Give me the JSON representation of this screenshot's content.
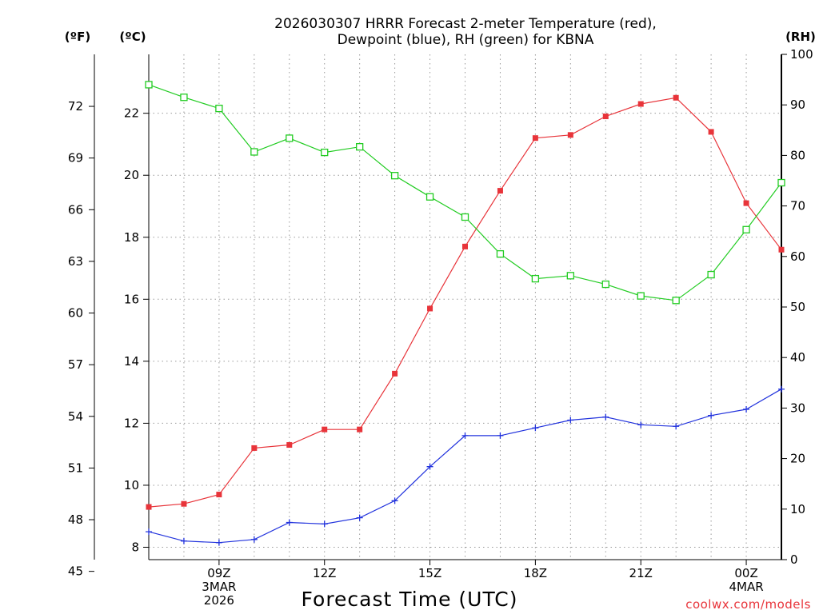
{
  "title_lines": [
    "2026030307 HRRR Forecast 2-meter Temperature (red),",
    "Dewpoint (blue), RH (green) for KBNA"
  ],
  "units": {
    "f": "(ºF)",
    "c": "(ºC)",
    "rh": "(RH)"
  },
  "x_axis_label": "Forecast Time (UTC)",
  "credit": "coolwx.com/models",
  "colors": {
    "temp": "#e8343a",
    "dewp": "#2233dd",
    "rh": "#22cc22",
    "grid": "#9a9a9a"
  },
  "chart_data": {
    "type": "line",
    "title": "2026030307 HRRR Forecast 2-meter Temperature (red), Dewpoint (blue), RH (green) for KBNA",
    "xlabel": "Forecast Time (UTC)",
    "x_hours": [
      7,
      8,
      9,
      10,
      11,
      12,
      13,
      14,
      15,
      16,
      17,
      18,
      19,
      20,
      21,
      22,
      23,
      24,
      25
    ],
    "xlim": [
      7,
      25
    ],
    "x_ticks": [
      {
        "hour": 9,
        "lines": [
          "09Z",
          "3MAR",
          "2026"
        ]
      },
      {
        "hour": 12,
        "lines": [
          "12Z"
        ]
      },
      {
        "hour": 15,
        "lines": [
          "15Z"
        ]
      },
      {
        "hour": 18,
        "lines": [
          "18Z"
        ]
      },
      {
        "hour": 21,
        "lines": [
          "21Z"
        ]
      },
      {
        "hour": 24,
        "lines": [
          "00Z",
          "4MAR"
        ]
      }
    ],
    "left_axis_c": {
      "label": "(ºC)",
      "ylim": [
        7.6,
        23.9
      ],
      "ticks": [
        8,
        10,
        12,
        14,
        16,
        18,
        20,
        22
      ]
    },
    "left_axis_f": {
      "label": "(ºF)",
      "ticks": [
        45,
        48,
        51,
        54,
        57,
        60,
        63,
        66,
        69,
        72
      ]
    },
    "right_axis_rh": {
      "label": "(RH)",
      "ylim": [
        0,
        100
      ],
      "ticks": [
        0,
        10,
        20,
        30,
        40,
        50,
        60,
        70,
        80,
        90,
        100
      ]
    },
    "series": [
      {
        "name": "2-meter Temperature",
        "color": "red",
        "axis": "celsius",
        "marker": "filled-square",
        "values": [
          9.3,
          9.4,
          9.7,
          11.2,
          11.3,
          11.8,
          11.8,
          13.6,
          15.7,
          17.7,
          19.5,
          21.2,
          21.3,
          21.9,
          22.3,
          22.5,
          21.4,
          19.1,
          17.6
        ]
      },
      {
        "name": "Dewpoint",
        "color": "blue",
        "axis": "celsius",
        "marker": "plus",
        "values": [
          8.5,
          8.2,
          8.15,
          8.25,
          8.8,
          8.75,
          8.95,
          9.5,
          10.6,
          11.6,
          11.6,
          11.85,
          12.1,
          12.2,
          11.95,
          11.9,
          12.25,
          12.45,
          13.1
        ]
      },
      {
        "name": "RH",
        "color": "green",
        "axis": "rh",
        "marker": "open-square",
        "values": [
          94,
          91.5,
          89.3,
          80.7,
          83.4,
          80.6,
          81.7,
          76,
          71.8,
          67.8,
          60.5,
          55.6,
          56.2,
          54.5,
          52.2,
          51.3,
          56.4,
          65.3,
          74.6
        ]
      }
    ]
  }
}
